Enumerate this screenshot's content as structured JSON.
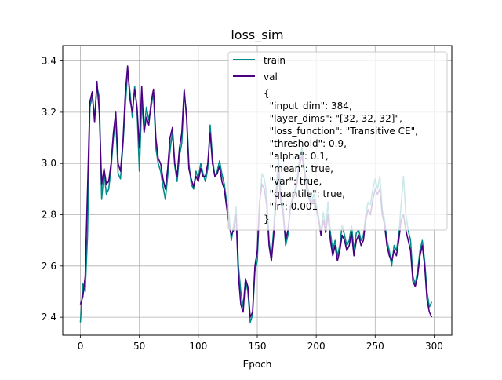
{
  "chart_data": {
    "type": "line",
    "title": "loss_sim",
    "xlabel": "Epoch",
    "ylabel": "",
    "xlim": [
      -15,
      315
    ],
    "ylim": [
      2.33,
      3.46
    ],
    "xticks": [
      0,
      50,
      100,
      150,
      200,
      250,
      300
    ],
    "yticks": [
      2.4,
      2.6,
      2.8,
      3.0,
      3.2,
      3.4
    ],
    "ytick_labels": [
      "2.4",
      "2.6",
      "2.8",
      "3.0",
      "3.2",
      "3.4"
    ],
    "grid": true,
    "legend": {
      "placement": "top-right",
      "entries": [
        "train",
        "val"
      ],
      "text_lines": [
        "{",
        "  \"input_dim\": 384,",
        "  \"layer_dims\": \"[32, 32, 32]\",",
        "  \"loss_function\": \"Transitive CE\",",
        "  \"threshold\": 0.9,",
        "  \"alpha\": 0.1,",
        "  \"mean\": true,",
        "  \"var\": true,",
        "  \"quantile\": true,",
        "  \"lr\": 0.001",
        "}"
      ]
    },
    "series": [
      {
        "name": "train",
        "color": "#008b8b",
        "points": [
          [
            0,
            2.38
          ],
          [
            2,
            2.53
          ],
          [
            4,
            2.5
          ],
          [
            6,
            2.72
          ],
          [
            8,
            3.22
          ],
          [
            10,
            3.26
          ],
          [
            12,
            3.18
          ],
          [
            14,
            3.3
          ],
          [
            16,
            3.26
          ],
          [
            18,
            2.86
          ],
          [
            20,
            2.97
          ],
          [
            22,
            2.88
          ],
          [
            24,
            2.9
          ],
          [
            26,
            2.98
          ],
          [
            28,
            3.1
          ],
          [
            30,
            3.17
          ],
          [
            32,
            2.96
          ],
          [
            34,
            2.94
          ],
          [
            36,
            3.07
          ],
          [
            38,
            3.22
          ],
          [
            40,
            3.36
          ],
          [
            42,
            3.28
          ],
          [
            44,
            3.18
          ],
          [
            46,
            3.3
          ],
          [
            48,
            3.21
          ],
          [
            50,
            2.97
          ],
          [
            52,
            3.24
          ],
          [
            54,
            3.13
          ],
          [
            56,
            3.22
          ],
          [
            58,
            3.17
          ],
          [
            60,
            3.22
          ],
          [
            62,
            3.28
          ],
          [
            64,
            3.06
          ],
          [
            66,
            3.0
          ],
          [
            68,
            2.97
          ],
          [
            70,
            2.91
          ],
          [
            72,
            2.86
          ],
          [
            74,
            2.95
          ],
          [
            76,
            3.05
          ],
          [
            78,
            3.12
          ],
          [
            80,
            2.99
          ],
          [
            82,
            2.93
          ],
          [
            84,
            3.03
          ],
          [
            86,
            3.08
          ],
          [
            88,
            3.27
          ],
          [
            90,
            3.2
          ],
          [
            92,
            3.0
          ],
          [
            94,
            2.92
          ],
          [
            96,
            2.9
          ],
          [
            98,
            2.97
          ],
          [
            100,
            2.94
          ],
          [
            102,
            3.0
          ],
          [
            104,
            2.96
          ],
          [
            106,
            2.93
          ],
          [
            108,
            2.98
          ],
          [
            110,
            3.15
          ],
          [
            112,
            3.02
          ],
          [
            114,
            2.95
          ],
          [
            116,
            2.97
          ],
          [
            118,
            3.01
          ],
          [
            120,
            2.96
          ],
          [
            122,
            2.92
          ],
          [
            124,
            2.85
          ],
          [
            126,
            2.8
          ],
          [
            128,
            2.7
          ],
          [
            130,
            2.76
          ],
          [
            132,
            2.83
          ],
          [
            134,
            2.6
          ],
          [
            136,
            2.5
          ],
          [
            138,
            2.44
          ],
          [
            140,
            2.55
          ],
          [
            142,
            2.5
          ],
          [
            144,
            2.38
          ],
          [
            146,
            2.41
          ],
          [
            148,
            2.58
          ],
          [
            150,
            2.62
          ],
          [
            152,
            2.84
          ],
          [
            154,
            2.96
          ],
          [
            156,
            2.94
          ],
          [
            158,
            2.88
          ],
          [
            160,
            2.7
          ],
          [
            162,
            2.62
          ],
          [
            164,
            2.75
          ],
          [
            166,
            2.9
          ],
          [
            168,
            3.02
          ],
          [
            170,
            2.88
          ],
          [
            172,
            2.82
          ],
          [
            174,
            2.68
          ],
          [
            176,
            2.72
          ],
          [
            178,
            2.83
          ],
          [
            180,
            2.87
          ],
          [
            182,
            2.9
          ],
          [
            184,
            2.95
          ],
          [
            186,
            3.02
          ],
          [
            188,
            3.06
          ],
          [
            190,
            2.98
          ],
          [
            192,
            2.92
          ],
          [
            194,
            2.88
          ],
          [
            196,
            2.85
          ],
          [
            198,
            2.88
          ],
          [
            200,
            2.84
          ],
          [
            202,
            2.79
          ],
          [
            204,
            2.73
          ],
          [
            206,
            2.81
          ],
          [
            208,
            2.75
          ],
          [
            210,
            2.85
          ],
          [
            212,
            2.73
          ],
          [
            214,
            2.66
          ],
          [
            216,
            2.7
          ],
          [
            218,
            2.64
          ],
          [
            220,
            2.68
          ],
          [
            222,
            2.76
          ],
          [
            224,
            2.72
          ],
          [
            226,
            2.68
          ],
          [
            228,
            2.7
          ],
          [
            230,
            2.76
          ],
          [
            232,
            2.66
          ],
          [
            234,
            2.73
          ],
          [
            236,
            2.74
          ],
          [
            238,
            2.7
          ],
          [
            240,
            2.72
          ],
          [
            242,
            2.8
          ],
          [
            244,
            2.85
          ],
          [
            246,
            2.84
          ],
          [
            248,
            2.9
          ],
          [
            250,
            2.94
          ],
          [
            252,
            2.9
          ],
          [
            254,
            2.95
          ],
          [
            256,
            2.82
          ],
          [
            258,
            2.78
          ],
          [
            260,
            2.7
          ],
          [
            262,
            2.66
          ],
          [
            264,
            2.6
          ],
          [
            266,
            2.68
          ],
          [
            268,
            2.66
          ],
          [
            270,
            2.72
          ],
          [
            272,
            2.84
          ],
          [
            274,
            2.95
          ],
          [
            276,
            2.8
          ],
          [
            278,
            2.74
          ],
          [
            280,
            2.7
          ],
          [
            282,
            2.56
          ],
          [
            284,
            2.53
          ],
          [
            286,
            2.58
          ],
          [
            288,
            2.66
          ],
          [
            290,
            2.7
          ],
          [
            292,
            2.62
          ],
          [
            294,
            2.5
          ],
          [
            296,
            2.44
          ],
          [
            298,
            2.46
          ]
        ]
      },
      {
        "name": "val",
        "color": "#4b0082",
        "points": [
          [
            0,
            2.45
          ],
          [
            2,
            2.48
          ],
          [
            4,
            2.56
          ],
          [
            6,
            2.9
          ],
          [
            8,
            3.24
          ],
          [
            10,
            3.28
          ],
          [
            12,
            3.16
          ],
          [
            14,
            3.32
          ],
          [
            16,
            3.2
          ],
          [
            18,
            2.92
          ],
          [
            20,
            2.98
          ],
          [
            22,
            2.92
          ],
          [
            24,
            2.93
          ],
          [
            26,
            3.0
          ],
          [
            28,
            3.12
          ],
          [
            30,
            3.2
          ],
          [
            32,
            3.0
          ],
          [
            34,
            2.97
          ],
          [
            36,
            3.08
          ],
          [
            38,
            3.27
          ],
          [
            40,
            3.38
          ],
          [
            42,
            3.25
          ],
          [
            44,
            3.2
          ],
          [
            46,
            3.29
          ],
          [
            48,
            3.22
          ],
          [
            50,
            3.06
          ],
          [
            52,
            3.3
          ],
          [
            54,
            3.12
          ],
          [
            56,
            3.18
          ],
          [
            58,
            3.15
          ],
          [
            60,
            3.24
          ],
          [
            62,
            3.29
          ],
          [
            64,
            3.1
          ],
          [
            66,
            3.02
          ],
          [
            68,
            3.0
          ],
          [
            70,
            2.94
          ],
          [
            72,
            2.9
          ],
          [
            74,
            2.98
          ],
          [
            76,
            3.1
          ],
          [
            78,
            3.14
          ],
          [
            80,
            3.0
          ],
          [
            82,
            2.95
          ],
          [
            84,
            3.06
          ],
          [
            86,
            3.12
          ],
          [
            88,
            3.29
          ],
          [
            90,
            3.18
          ],
          [
            92,
            2.98
          ],
          [
            94,
            2.94
          ],
          [
            96,
            2.91
          ],
          [
            98,
            2.95
          ],
          [
            100,
            2.93
          ],
          [
            102,
            2.98
          ],
          [
            104,
            2.95
          ],
          [
            106,
            2.95
          ],
          [
            108,
            3.0
          ],
          [
            110,
            3.12
          ],
          [
            112,
            3.0
          ],
          [
            114,
            2.95
          ],
          [
            116,
            2.96
          ],
          [
            118,
            2.99
          ],
          [
            120,
            2.93
          ],
          [
            122,
            2.9
          ],
          [
            124,
            2.83
          ],
          [
            126,
            2.76
          ],
          [
            128,
            2.72
          ],
          [
            130,
            2.74
          ],
          [
            132,
            2.8
          ],
          [
            134,
            2.56
          ],
          [
            136,
            2.45
          ],
          [
            138,
            2.42
          ],
          [
            140,
            2.55
          ],
          [
            142,
            2.52
          ],
          [
            144,
            2.4
          ],
          [
            146,
            2.42
          ],
          [
            148,
            2.6
          ],
          [
            150,
            2.66
          ],
          [
            152,
            2.85
          ],
          [
            154,
            2.92
          ],
          [
            156,
            2.9
          ],
          [
            158,
            2.84
          ],
          [
            160,
            2.68
          ],
          [
            162,
            2.62
          ],
          [
            164,
            2.72
          ],
          [
            166,
            2.86
          ],
          [
            168,
            2.97
          ],
          [
            170,
            2.85
          ],
          [
            172,
            2.8
          ],
          [
            174,
            2.7
          ],
          [
            176,
            2.74
          ],
          [
            178,
            2.82
          ],
          [
            180,
            2.86
          ],
          [
            182,
            2.88
          ],
          [
            184,
            2.93
          ],
          [
            186,
            3.0
          ],
          [
            188,
            3.03
          ],
          [
            190,
            2.96
          ],
          [
            192,
            2.9
          ],
          [
            194,
            2.86
          ],
          [
            196,
            2.84
          ],
          [
            198,
            2.86
          ],
          [
            200,
            2.82
          ],
          [
            202,
            2.78
          ],
          [
            204,
            2.72
          ],
          [
            206,
            2.78
          ],
          [
            208,
            2.73
          ],
          [
            210,
            2.8
          ],
          [
            212,
            2.7
          ],
          [
            214,
            2.64
          ],
          [
            216,
            2.68
          ],
          [
            218,
            2.62
          ],
          [
            220,
            2.66
          ],
          [
            222,
            2.72
          ],
          [
            224,
            2.7
          ],
          [
            226,
            2.66
          ],
          [
            228,
            2.68
          ],
          [
            230,
            2.73
          ],
          [
            232,
            2.64
          ],
          [
            234,
            2.7
          ],
          [
            236,
            2.72
          ],
          [
            238,
            2.68
          ],
          [
            240,
            2.7
          ],
          [
            242,
            2.78
          ],
          [
            244,
            2.82
          ],
          [
            246,
            2.8
          ],
          [
            248,
            2.86
          ],
          [
            250,
            2.9
          ],
          [
            252,
            2.88
          ],
          [
            254,
            2.9
          ],
          [
            256,
            2.8
          ],
          [
            258,
            2.76
          ],
          [
            260,
            2.68
          ],
          [
            262,
            2.64
          ],
          [
            264,
            2.62
          ],
          [
            266,
            2.66
          ],
          [
            268,
            2.64
          ],
          [
            270,
            2.7
          ],
          [
            272,
            2.78
          ],
          [
            274,
            2.8
          ],
          [
            276,
            2.74
          ],
          [
            278,
            2.7
          ],
          [
            280,
            2.66
          ],
          [
            282,
            2.54
          ],
          [
            284,
            2.52
          ],
          [
            286,
            2.56
          ],
          [
            288,
            2.64
          ],
          [
            290,
            2.68
          ],
          [
            292,
            2.6
          ],
          [
            294,
            2.47
          ],
          [
            296,
            2.42
          ],
          [
            298,
            2.4
          ]
        ]
      }
    ]
  }
}
